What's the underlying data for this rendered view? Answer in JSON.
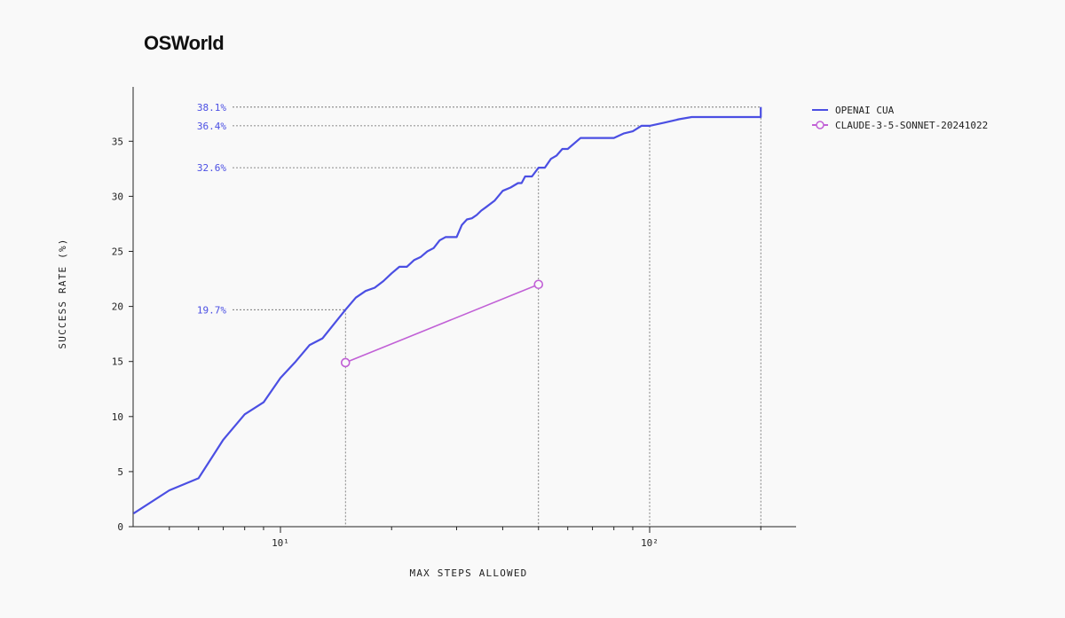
{
  "title": "OSWorld",
  "chart_data": {
    "type": "line",
    "title": "OSWorld",
    "xlabel": "MAX STEPS ALLOWED",
    "ylabel": "SUCCESS RATE (%)",
    "xscale": "log",
    "xlim": [
      4,
      200
    ],
    "ylim": [
      0,
      40
    ],
    "yticks": [
      "0",
      "5",
      "10",
      "15",
      "20",
      "25",
      "30",
      "35"
    ],
    "xticks": [
      {
        "value": 10,
        "label": "10¹"
      },
      {
        "value": 100,
        "label": "10²"
      }
    ],
    "legend_position": "top-right",
    "series": [
      {
        "name": "OPENAI CUA",
        "color": "#4b4fe3",
        "marker": "none",
        "x": [
          4,
          5,
          6,
          7,
          8,
          9,
          10,
          11,
          12,
          13,
          15,
          16,
          17,
          18,
          19,
          20,
          21,
          22,
          23,
          24,
          25,
          26,
          27,
          28,
          29,
          30,
          31,
          32,
          33,
          34,
          35,
          36,
          38,
          40,
          42,
          44,
          45,
          46,
          48,
          50,
          52,
          54,
          56,
          58,
          60,
          65,
          70,
          80,
          85,
          90,
          95,
          100,
          110,
          120,
          130,
          150,
          175,
          200,
          200
        ],
        "y": [
          1.2,
          3.3,
          4.4,
          7.9,
          10.2,
          11.3,
          13.5,
          15.0,
          16.5,
          17.1,
          19.7,
          20.8,
          21.4,
          21.7,
          22.3,
          23.0,
          23.6,
          23.6,
          24.2,
          24.5,
          25.0,
          25.3,
          26.0,
          26.3,
          26.3,
          26.3,
          27.4,
          27.9,
          28.0,
          28.3,
          28.7,
          29.0,
          29.6,
          30.5,
          30.8,
          31.2,
          31.2,
          31.8,
          31.8,
          32.6,
          32.6,
          33.4,
          33.7,
          34.3,
          34.3,
          35.3,
          35.3,
          35.3,
          35.7,
          35.9,
          36.4,
          36.4,
          36.7,
          37.0,
          37.2,
          37.2,
          37.2,
          37.2,
          38.1
        ]
      },
      {
        "name": "CLAUDE-3-5-SONNET-20241022",
        "color": "#c160d6",
        "marker": "circle",
        "x": [
          15,
          50
        ],
        "y": [
          14.9,
          22.0
        ]
      }
    ],
    "annotations": [
      {
        "label": "38.1%",
        "x": 200,
        "y": 38.1
      },
      {
        "label": "36.4%",
        "x": 100,
        "y": 36.4
      },
      {
        "label": "32.6%",
        "x": 50,
        "y": 32.6
      },
      {
        "label": "19.7%",
        "x": 15,
        "y": 19.7
      }
    ]
  }
}
